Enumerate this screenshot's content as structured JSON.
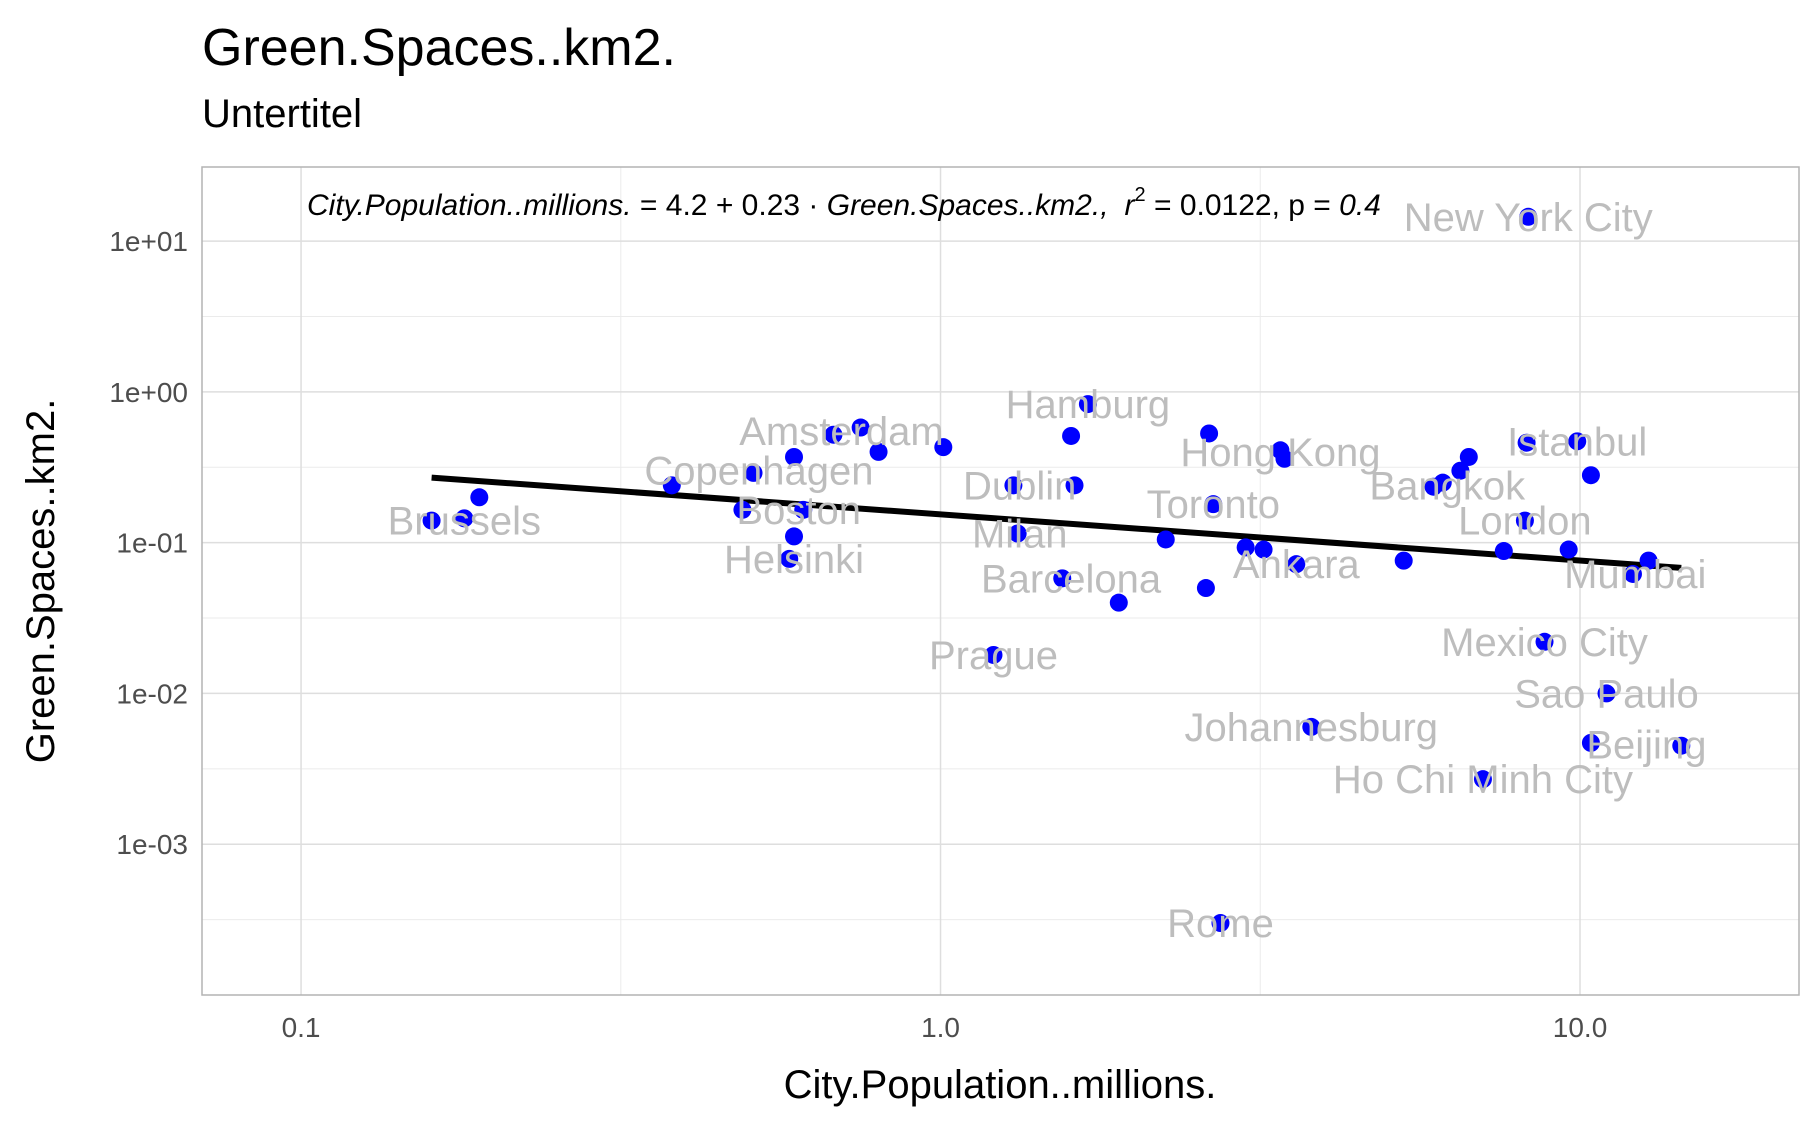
{
  "title": "Green.Spaces..km2.",
  "subtitle": "Untertitel",
  "equation": {
    "lhs": "City.Population..millions.",
    "eq": " = 4.2 + 0.23 · ",
    "rhs": "Green.Spaces..km2.,",
    "r_sym": "r",
    "r_exp": "2",
    "r_val": " = 0.0122,  p = ",
    "p_val": "0.4"
  },
  "chart_data": {
    "type": "scatter",
    "title": "Green.Spaces..km2.",
    "subtitle": "Untertitel",
    "xlabel": "City.Population..millions.",
    "ylabel": "Green.Spaces..km2.",
    "x_scale": "log10",
    "y_scale": "log10",
    "xlim": [
      0.07,
      22
    ],
    "ylim": [
      0.0001,
      31
    ],
    "x_ticks": [
      {
        "value": 0.1,
        "label": "0.1"
      },
      {
        "value": 1,
        "label": "1.0"
      },
      {
        "value": 10,
        "label": "10.0"
      }
    ],
    "y_ticks": [
      {
        "value": 0.001,
        "label": "1e-03"
      },
      {
        "value": 0.01,
        "label": "1e-02"
      },
      {
        "value": 0.1,
        "label": "1e-01"
      },
      {
        "value": 1,
        "label": "1e+00"
      },
      {
        "value": 10,
        "label": "1e+01"
      }
    ],
    "grid": true,
    "point_color": "#0000ff",
    "label_color": "#bdbdbd",
    "trend_color": "#000000",
    "points": [
      {
        "x": 0.16,
        "y": 0.14
      },
      {
        "x": 0.18,
        "y": 0.145
      },
      {
        "x": 0.19,
        "y": 0.2
      },
      {
        "x": 0.38,
        "y": 0.24
      },
      {
        "x": 0.49,
        "y": 0.165
      },
      {
        "x": 0.51,
        "y": 0.29
      },
      {
        "x": 0.59,
        "y": 0.37
      },
      {
        "x": 0.59,
        "y": 0.11
      },
      {
        "x": 0.58,
        "y": 0.078
      },
      {
        "x": 0.61,
        "y": 0.165
      },
      {
        "x": 0.68,
        "y": 0.52
      },
      {
        "x": 0.75,
        "y": 0.58
      },
      {
        "x": 0.8,
        "y": 0.4
      },
      {
        "x": 1.01,
        "y": 0.43
      },
      {
        "x": 1.21,
        "y": 0.018
      },
      {
        "x": 1.3,
        "y": 0.24
      },
      {
        "x": 1.32,
        "y": 0.115
      },
      {
        "x": 1.55,
        "y": 0.058
      },
      {
        "x": 1.6,
        "y": 0.51
      },
      {
        "x": 1.62,
        "y": 0.24
      },
      {
        "x": 1.7,
        "y": 0.83
      },
      {
        "x": 1.9,
        "y": 0.04
      },
      {
        "x": 2.25,
        "y": 0.105
      },
      {
        "x": 2.6,
        "y": 0.05
      },
      {
        "x": 2.63,
        "y": 0.53
      },
      {
        "x": 2.67,
        "y": 0.18
      },
      {
        "x": 2.74,
        "y": 0.0003
      },
      {
        "x": 3.0,
        "y": 0.093
      },
      {
        "x": 3.2,
        "y": 0.09
      },
      {
        "x": 3.4,
        "y": 0.41
      },
      {
        "x": 3.45,
        "y": 0.36
      },
      {
        "x": 3.6,
        "y": 0.072
      },
      {
        "x": 3.8,
        "y": 0.006
      },
      {
        "x": 5.3,
        "y": 0.076
      },
      {
        "x": 5.9,
        "y": 0.235
      },
      {
        "x": 6.1,
        "y": 0.25
      },
      {
        "x": 6.5,
        "y": 0.3
      },
      {
        "x": 6.7,
        "y": 0.37
      },
      {
        "x": 7.05,
        "y": 0.0027
      },
      {
        "x": 7.6,
        "y": 0.088
      },
      {
        "x": 8.2,
        "y": 0.14
      },
      {
        "x": 8.25,
        "y": 0.46
      },
      {
        "x": 8.3,
        "y": 14.5
      },
      {
        "x": 8.8,
        "y": 0.022
      },
      {
        "x": 9.6,
        "y": 0.09
      },
      {
        "x": 9.9,
        "y": 0.47
      },
      {
        "x": 10.4,
        "y": 0.0047
      },
      {
        "x": 10.4,
        "y": 0.28
      },
      {
        "x": 11.0,
        "y": 0.01
      },
      {
        "x": 12.1,
        "y": 0.062
      },
      {
        "x": 12.8,
        "y": 0.076
      },
      {
        "x": 14.4,
        "y": 0.0045
      }
    ],
    "labels": [
      {
        "text": "New York City",
        "x": 8.3,
        "y": 14.5
      },
      {
        "text": "Hamburg",
        "x": 1.7,
        "y": 0.83
      },
      {
        "text": "Amsterdam",
        "x": 0.7,
        "y": 0.55
      },
      {
        "text": "Hong Kong",
        "x": 3.4,
        "y": 0.4
      },
      {
        "text": "Istanbul",
        "x": 9.9,
        "y": 0.47
      },
      {
        "text": "Copenhagen",
        "x": 0.52,
        "y": 0.3
      },
      {
        "text": "Dublin",
        "x": 1.33,
        "y": 0.24
      },
      {
        "text": "Bangkok",
        "x": 6.2,
        "y": 0.24
      },
      {
        "text": "Toronto",
        "x": 2.67,
        "y": 0.18
      },
      {
        "text": "Boston",
        "x": 0.6,
        "y": 0.165
      },
      {
        "text": "Brussels",
        "x": 0.18,
        "y": 0.14
      },
      {
        "text": "London",
        "x": 8.2,
        "y": 0.14
      },
      {
        "text": "Milan",
        "x": 1.33,
        "y": 0.115
      },
      {
        "text": "Helsinki",
        "x": 0.59,
        "y": 0.078
      },
      {
        "text": "Ankara",
        "x": 3.6,
        "y": 0.072
      },
      {
        "text": "Mumbai",
        "x": 12.2,
        "y": 0.062
      },
      {
        "text": "Barcelona",
        "x": 1.6,
        "y": 0.058
      },
      {
        "text": "Mexico City",
        "x": 8.8,
        "y": 0.022
      },
      {
        "text": "Prague",
        "x": 1.21,
        "y": 0.018
      },
      {
        "text": "Sao Paulo",
        "x": 11.0,
        "y": 0.01
      },
      {
        "text": "Johannesburg",
        "x": 3.8,
        "y": 0.006
      },
      {
        "text": "Beijing",
        "x": 12.7,
        "y": 0.0046
      },
      {
        "text": "Ho Chi Minh City",
        "x": 7.05,
        "y": 0.0027
      },
      {
        "text": "Rome",
        "x": 2.74,
        "y": 0.0003
      }
    ],
    "trendline": {
      "x": [
        0.16,
        14.4
      ],
      "y": [
        0.27,
        0.068
      ]
    }
  }
}
